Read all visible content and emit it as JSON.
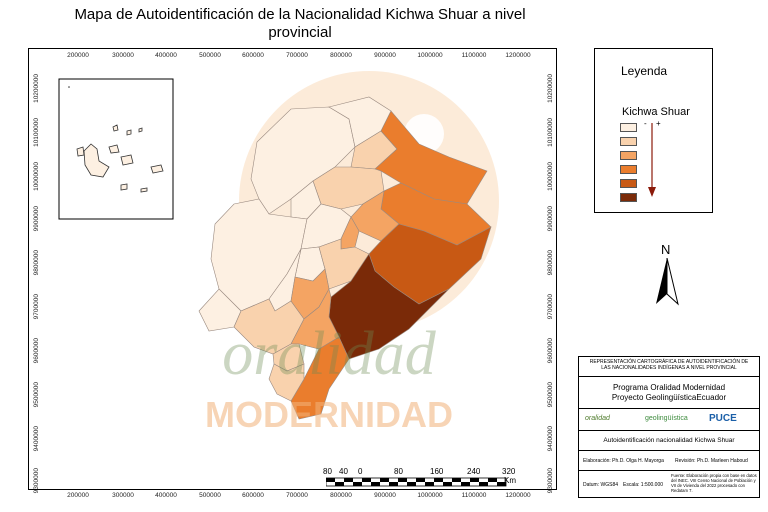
{
  "title": {
    "line1": "Mapa de Autoidentificación de la Nacionalidad Kichwa Shuar a nivel",
    "line2": "provincial"
  },
  "coords": {
    "x_labels": [
      "200000",
      "300000",
      "400000",
      "500000",
      "600000",
      "700000",
      "800000",
      "900000",
      "1000000",
      "1100000",
      "1200000"
    ],
    "y_labels": [
      "10200000",
      "10100000",
      "10000000",
      "9900000",
      "9800000",
      "9700000",
      "9600000",
      "9500000",
      "9400000",
      "9300000"
    ]
  },
  "legend": {
    "title": "Leyenda",
    "subtitle": "Kichwa Shuar",
    "top_mark": "-",
    "bottom_mark": "+",
    "colors": [
      "#fdf0e2",
      "#f9d2ad",
      "#f4a463",
      "#ea7d2d",
      "#c85914",
      "#7a2a08"
    ]
  },
  "north": {
    "label": "N"
  },
  "scale": {
    "labels": [
      "80",
      "40",
      "0",
      "80",
      "160",
      "240",
      "320"
    ],
    "unit": "Km"
  },
  "watermark": {
    "word1": "oralidad",
    "word2": "MODERNIDAD"
  },
  "info": {
    "header": "REPRESENTACIÓN CARTOGRÁFICA DE AUTOIDENTIFICACIÓN DE LAS NACIONALIDADES INDÍGENAS A NIVEL PROVINCIAL",
    "program": "Programa Oralidad Modernidad",
    "project": "Proyecto GeolingüísticaEcuador",
    "logos": [
      "oralidad",
      "geolingüística",
      "PUCE"
    ],
    "map_name": "Autoidentificación nacionalidad Kichwa Shuar",
    "elaboracion": "Elaboración: Ph.D. Olga H. Mayorga",
    "revision": "Revisión: Ph.D. Marleen Haboud",
    "datum": "Datum: WGS84",
    "escala": "Escala: 1:500.000",
    "fuente": "Fuente: Elaboración propia con base en datos del INEC. VIII Censo Nacional de Población y VII de Vivienda del 2022 procesado con Redatam 7."
  }
}
